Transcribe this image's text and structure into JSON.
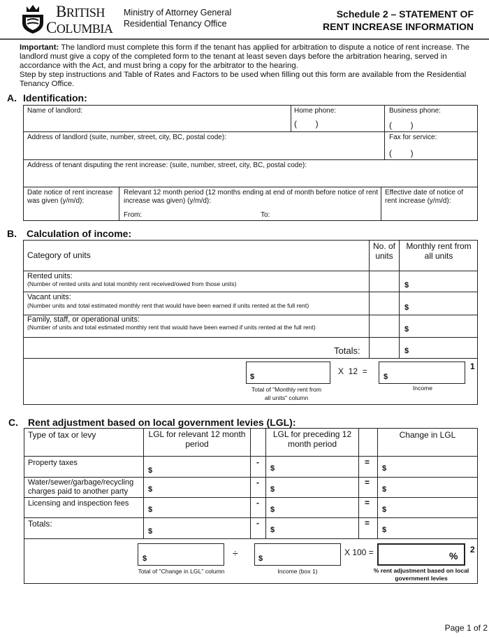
{
  "header": {
    "logo_text": [
      "BRITISH",
      "COLUMBIA"
    ],
    "ministry": "Ministry of Attorney General",
    "office": "Residential Tenancy Office",
    "title_line1": "Schedule 2 – STATEMENT OF",
    "title_line2": "RENT INCREASE INFORMATION"
  },
  "intro": {
    "important_label": "Important:",
    "important_text": " The landlord must complete this form if the tenant has applied for arbitration to dispute a notice of rent increase. The landlord must give a copy of the completed form to the tenant at least seven days before the arbitration hearing, served in accordance with the Act, and must bring a copy for the arbitrator to the hearing.",
    "instructions": "Step by step instructions and Table of Rates and Factors to be used when filling out this form are available from the Residential Tenancy Office."
  },
  "section_a": {
    "letter": "A.",
    "title": "Identification:",
    "name_of_landlord": "Name of landlord:",
    "home_phone": "Home phone:",
    "business_phone": "Business phone:",
    "phone_parens": "(        )",
    "address_landlord": "Address of landlord (suite, number, street, city, BC, postal code):",
    "fax": "Fax for service:",
    "address_tenant": "Address of tenant disputing the rent increase: (suite, number, street, city, BC, postal code):",
    "date_notice": "Date notice of rent increase was given (y/m/d):",
    "relevant_period": "Relevant 12 month period (12 months ending at end of month before notice of rent increase was given) (y/m/d):",
    "from": "From:",
    "to": "To:",
    "effective_date": "Effective date of notice of rent increase (y/m/d):"
  },
  "section_b": {
    "letter": "B.",
    "title": "Calculation of income:",
    "col_category": "Category of units",
    "col_no_units": "No. of units",
    "col_monthly_rent": "Monthly rent from all units",
    "rows": [
      {
        "title": "Rented units:",
        "note": "(Number of rented units and total monthly rent received/owed from those units)"
      },
      {
        "title": "Vacant units:",
        "note": "(Number units and total estimated monthly rent that would have been earned if units rented at the full rent)"
      },
      {
        "title": "Family, staff, or operational units:",
        "note": "(Number of units and total estimated monthly rent that would have been earned if units rented at the full rent)"
      }
    ],
    "totals": "Totals:",
    "currency": "$",
    "multiplier": "X  12  =",
    "box_total_label": "Total of \"Monthly rent from all units\" column",
    "box_income_label": "Income",
    "box_number": "1"
  },
  "section_c": {
    "letter": "C.",
    "title": "Rent adjustment based on local government levies (LGL):",
    "col_type": "Type of tax or levy",
    "col_relevant": "LGL for relevant 12 month period",
    "col_preceding": "LGL for preceding 12 month period",
    "col_change": "Change in LGL",
    "minus": "-",
    "equals": "=",
    "currency": "$",
    "rows": [
      "Property taxes",
      "Water/sewer/garbage/recycling charges paid to another party",
      "Licensing and inspection fees",
      "Totals:"
    ],
    "divide": "÷",
    "multiplier": "X 100 =",
    "percent": "%",
    "box_change_label": "Total of \"Change in LGL\" column",
    "box_income_label": "Income (box 1)",
    "box_percent_label": "% rent adjustment based on local government levies",
    "box_number": "2"
  },
  "footer": {
    "page": "Page 1 of 2"
  }
}
